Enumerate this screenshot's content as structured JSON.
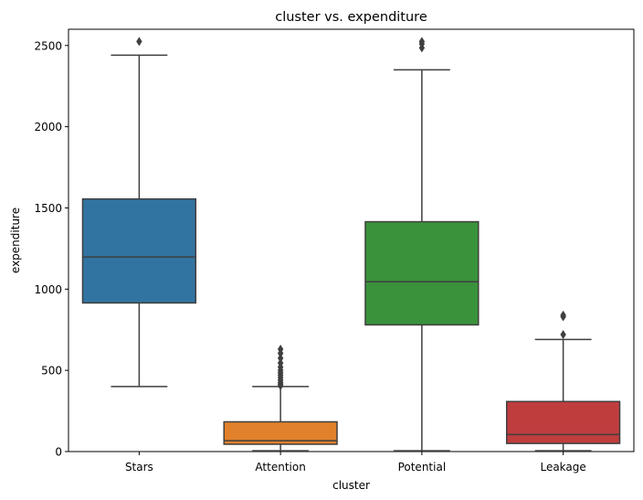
{
  "chart_data": {
    "type": "box",
    "title": "cluster vs. expenditure",
    "xlabel": "cluster",
    "ylabel": "expenditure",
    "ylim": [
      0,
      2600
    ],
    "yticks": [
      0,
      500,
      1000,
      1500,
      2000,
      2500
    ],
    "grid": false,
    "categories": [
      "Stars",
      "Attention",
      "Potential",
      "Leakage"
    ],
    "boxes": [
      {
        "category": "Stars",
        "color": "#3274a1",
        "whisker_low": 400,
        "q1": 915,
        "median": 1198,
        "q3": 1555,
        "whisker_high": 2440,
        "outliers": [
          2525
        ]
      },
      {
        "category": "Attention",
        "color": "#e1812c",
        "whisker_low": 5,
        "q1": 45,
        "median": 67,
        "q3": 183,
        "whisker_high": 400,
        "outliers": [
          405,
          415,
          425,
          440,
          455,
          470,
          485,
          500,
          520,
          545,
          575,
          605,
          630
        ]
      },
      {
        "category": "Potential",
        "color": "#3a923a",
        "whisker_low": 5,
        "q1": 780,
        "median": 1045,
        "q3": 1415,
        "whisker_high": 2350,
        "outliers": [
          2485,
          2510,
          2525
        ]
      },
      {
        "category": "Leakage",
        "color": "#c03d3e",
        "whisker_low": 5,
        "q1": 50,
        "median": 105,
        "q3": 308,
        "whisker_high": 690,
        "outliers": [
          720,
          830,
          840
        ]
      }
    ]
  }
}
